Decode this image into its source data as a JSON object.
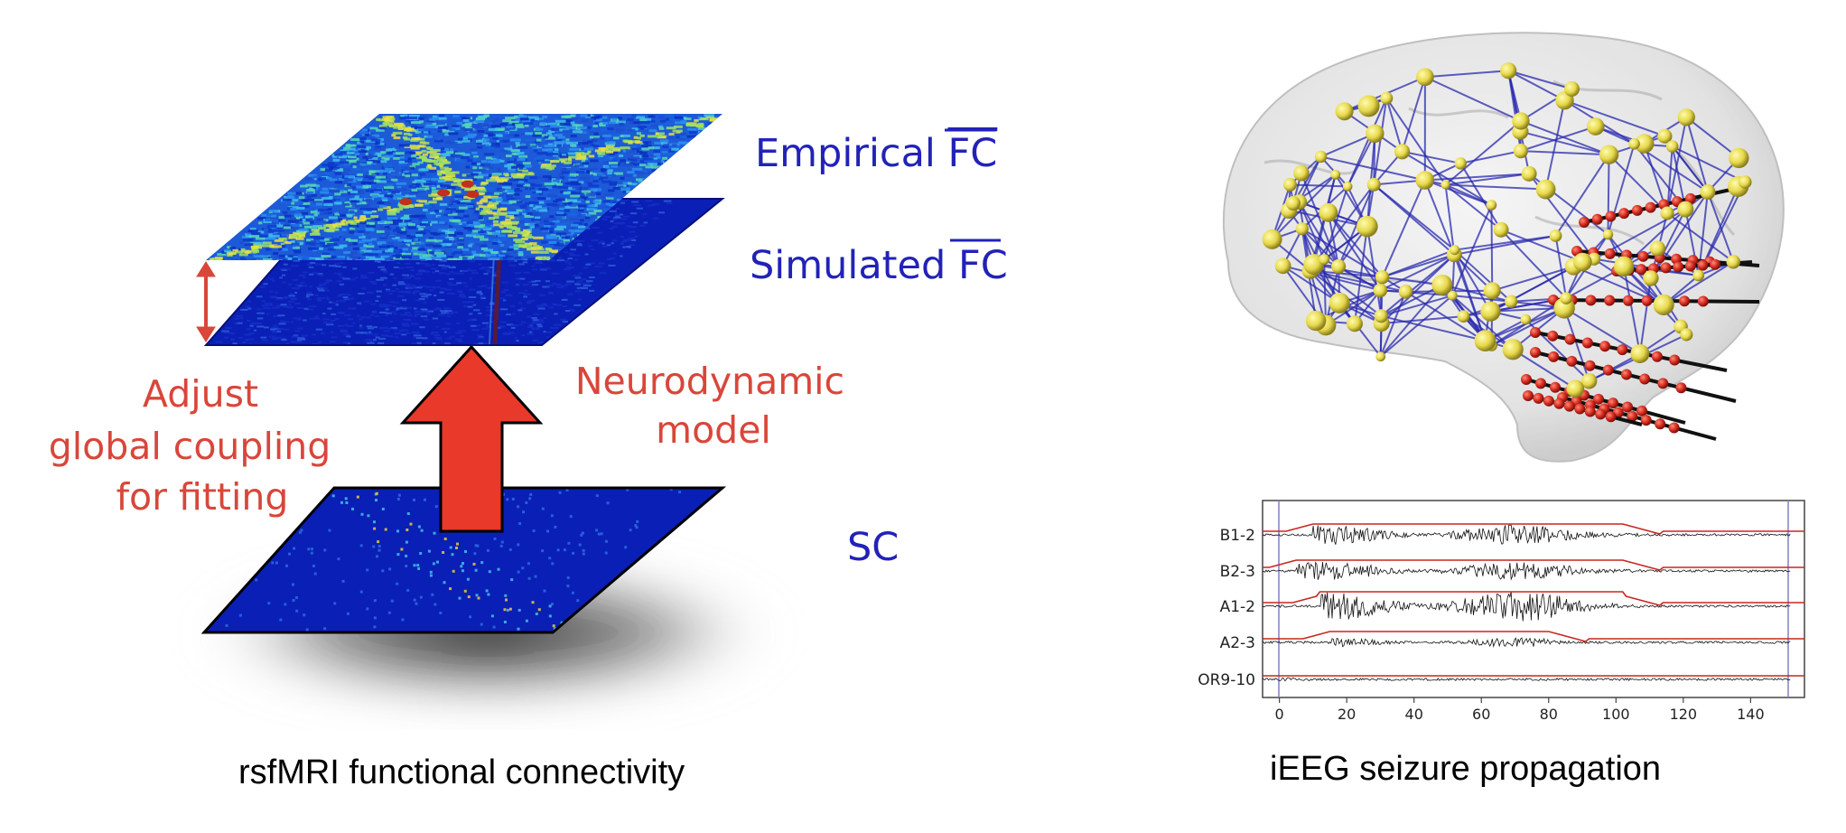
{
  "left_panel": {
    "caption": "rsfMRI functional connectivity",
    "layers": {
      "empirical": {
        "label": "Empirical ",
        "fc": "FC"
      },
      "simulated": {
        "label": "Simulated ",
        "fc": "FC"
      },
      "sc": {
        "label": "SC"
      }
    },
    "adjust_lines": [
      "Adjust",
      "global coupling",
      "for fitting"
    ],
    "model_lines": [
      "Neurodynamic",
      "model"
    ],
    "colors": {
      "blue_label": "#2222b8",
      "red_label": "#d9463a",
      "arrow": "#e8392a",
      "matrix_base": "#0a1fb5"
    }
  },
  "right_panel": {
    "caption": "iEEG seizure propagation",
    "trace_plot": {
      "channels": [
        "B1-2",
        "B2-3",
        "A1-2",
        "A2-3",
        "OR9-10"
      ],
      "x_ticks": [
        "0",
        "20",
        "40",
        "60",
        "80",
        "100",
        "120",
        "140"
      ],
      "x_range": [
        -5,
        156
      ],
      "colors": {
        "trace": "#111111",
        "envelope": "#c8261f",
        "marker": "#8080c0"
      }
    },
    "brain": {
      "colors": {
        "edge": "#2a2ab0",
        "node": "#e6d84a",
        "electrode": "#d42a1e",
        "shell": "#c8c8c8"
      }
    }
  }
}
